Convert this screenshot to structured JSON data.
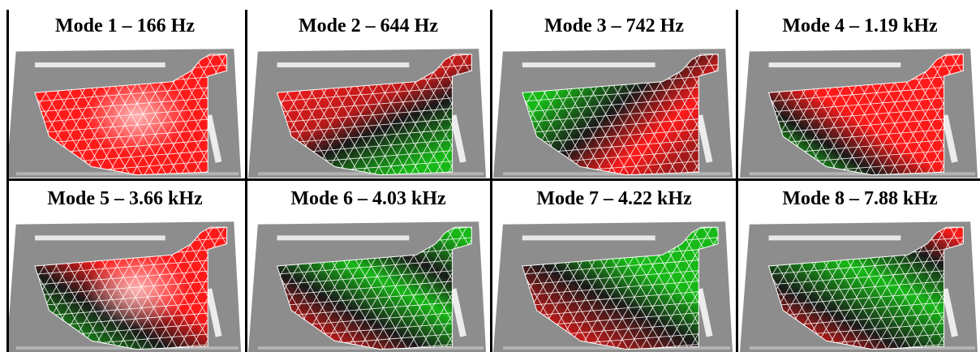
{
  "colors": {
    "positive": "#ff1a1a",
    "negative": "#17b817",
    "node": "#1a1a1a",
    "background_plate": "#8d8d8d",
    "mesh_lines": "#ffffff"
  },
  "panels": [
    {
      "title": "Mode 1 – 166 Hz",
      "pattern": "mode1"
    },
    {
      "title": "Mode 2 – 644 Hz",
      "pattern": "mode2"
    },
    {
      "title": "Mode 3 – 742 Hz",
      "pattern": "mode3"
    },
    {
      "title": "Mode 4 – 1.19 kHz",
      "pattern": "mode4"
    },
    {
      "title": "Mode 5 – 3.66 kHz",
      "pattern": "mode5"
    },
    {
      "title": "Mode 6 – 4.03 kHz",
      "pattern": "mode6"
    },
    {
      "title": "Mode 7 – 4.22 kHz",
      "pattern": "mode7"
    },
    {
      "title": "Mode 8 – 7.88 kHz",
      "pattern": "mode8"
    }
  ]
}
